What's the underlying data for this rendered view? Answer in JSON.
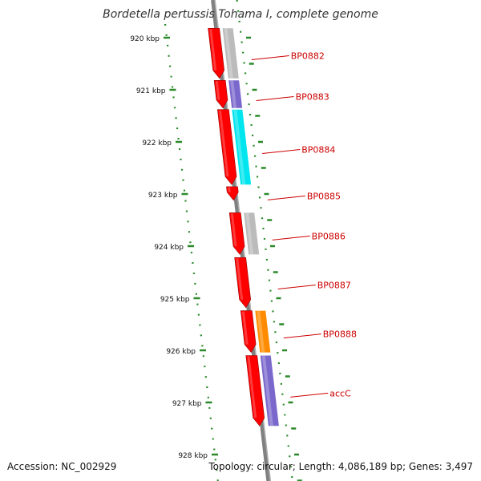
{
  "title": "Bordetella pertussis Tohama I, complete genome",
  "footer": {
    "accession": "Accession: NC_002929",
    "summary": "Topology: circular; Length: 4,086,189 bp; Genes: 3,497"
  },
  "colors": {
    "backbone": "#808080",
    "ruler": "#2a8a2a",
    "label": "#cc0000",
    "leader": "#cc0000",
    "cds": "#ff0000"
  },
  "diagram": {
    "ticks": [
      {
        "label": "920 kbp",
        "kbp": 920
      },
      {
        "label": "921 kbp",
        "kbp": 921
      },
      {
        "label": "922 kbp",
        "kbp": 922
      },
      {
        "label": "923 kbp",
        "kbp": 923
      },
      {
        "label": "924 kbp",
        "kbp": 924
      },
      {
        "label": "925 kbp",
        "kbp": 925
      },
      {
        "label": "926 kbp",
        "kbp": 926
      },
      {
        "label": "927 kbp",
        "kbp": 927
      },
      {
        "label": "928 kbp",
        "kbp": 928
      }
    ],
    "genes": [
      {
        "label": "BP0882",
        "start_kbp": 919.82,
        "end_kbp": 920.78,
        "cog_color": "#bbbbbb"
      },
      {
        "label": "BP0883",
        "start_kbp": 920.82,
        "end_kbp": 921.35,
        "cog_color": "#7b68cc"
      },
      {
        "label": "BP0884",
        "start_kbp": 921.38,
        "end_kbp": 922.82,
        "cog_color": "#00e5ee"
      },
      {
        "label": "BP0885",
        "start_kbp": 922.86,
        "end_kbp": 923.12,
        "cog_color": ""
      },
      {
        "label": "BP0886",
        "start_kbp": 923.36,
        "end_kbp": 924.16,
        "cog_color": "#bbbbbb"
      },
      {
        "label": "BP0887",
        "start_kbp": 924.22,
        "end_kbp": 925.18,
        "cog_color": ""
      },
      {
        "label": "BP0888",
        "start_kbp": 925.24,
        "end_kbp": 926.04,
        "cog_color": "#ff8c00"
      },
      {
        "label": "accC",
        "start_kbp": 926.1,
        "end_kbp": 927.45,
        "cog_color": "#7b68cc"
      }
    ]
  }
}
